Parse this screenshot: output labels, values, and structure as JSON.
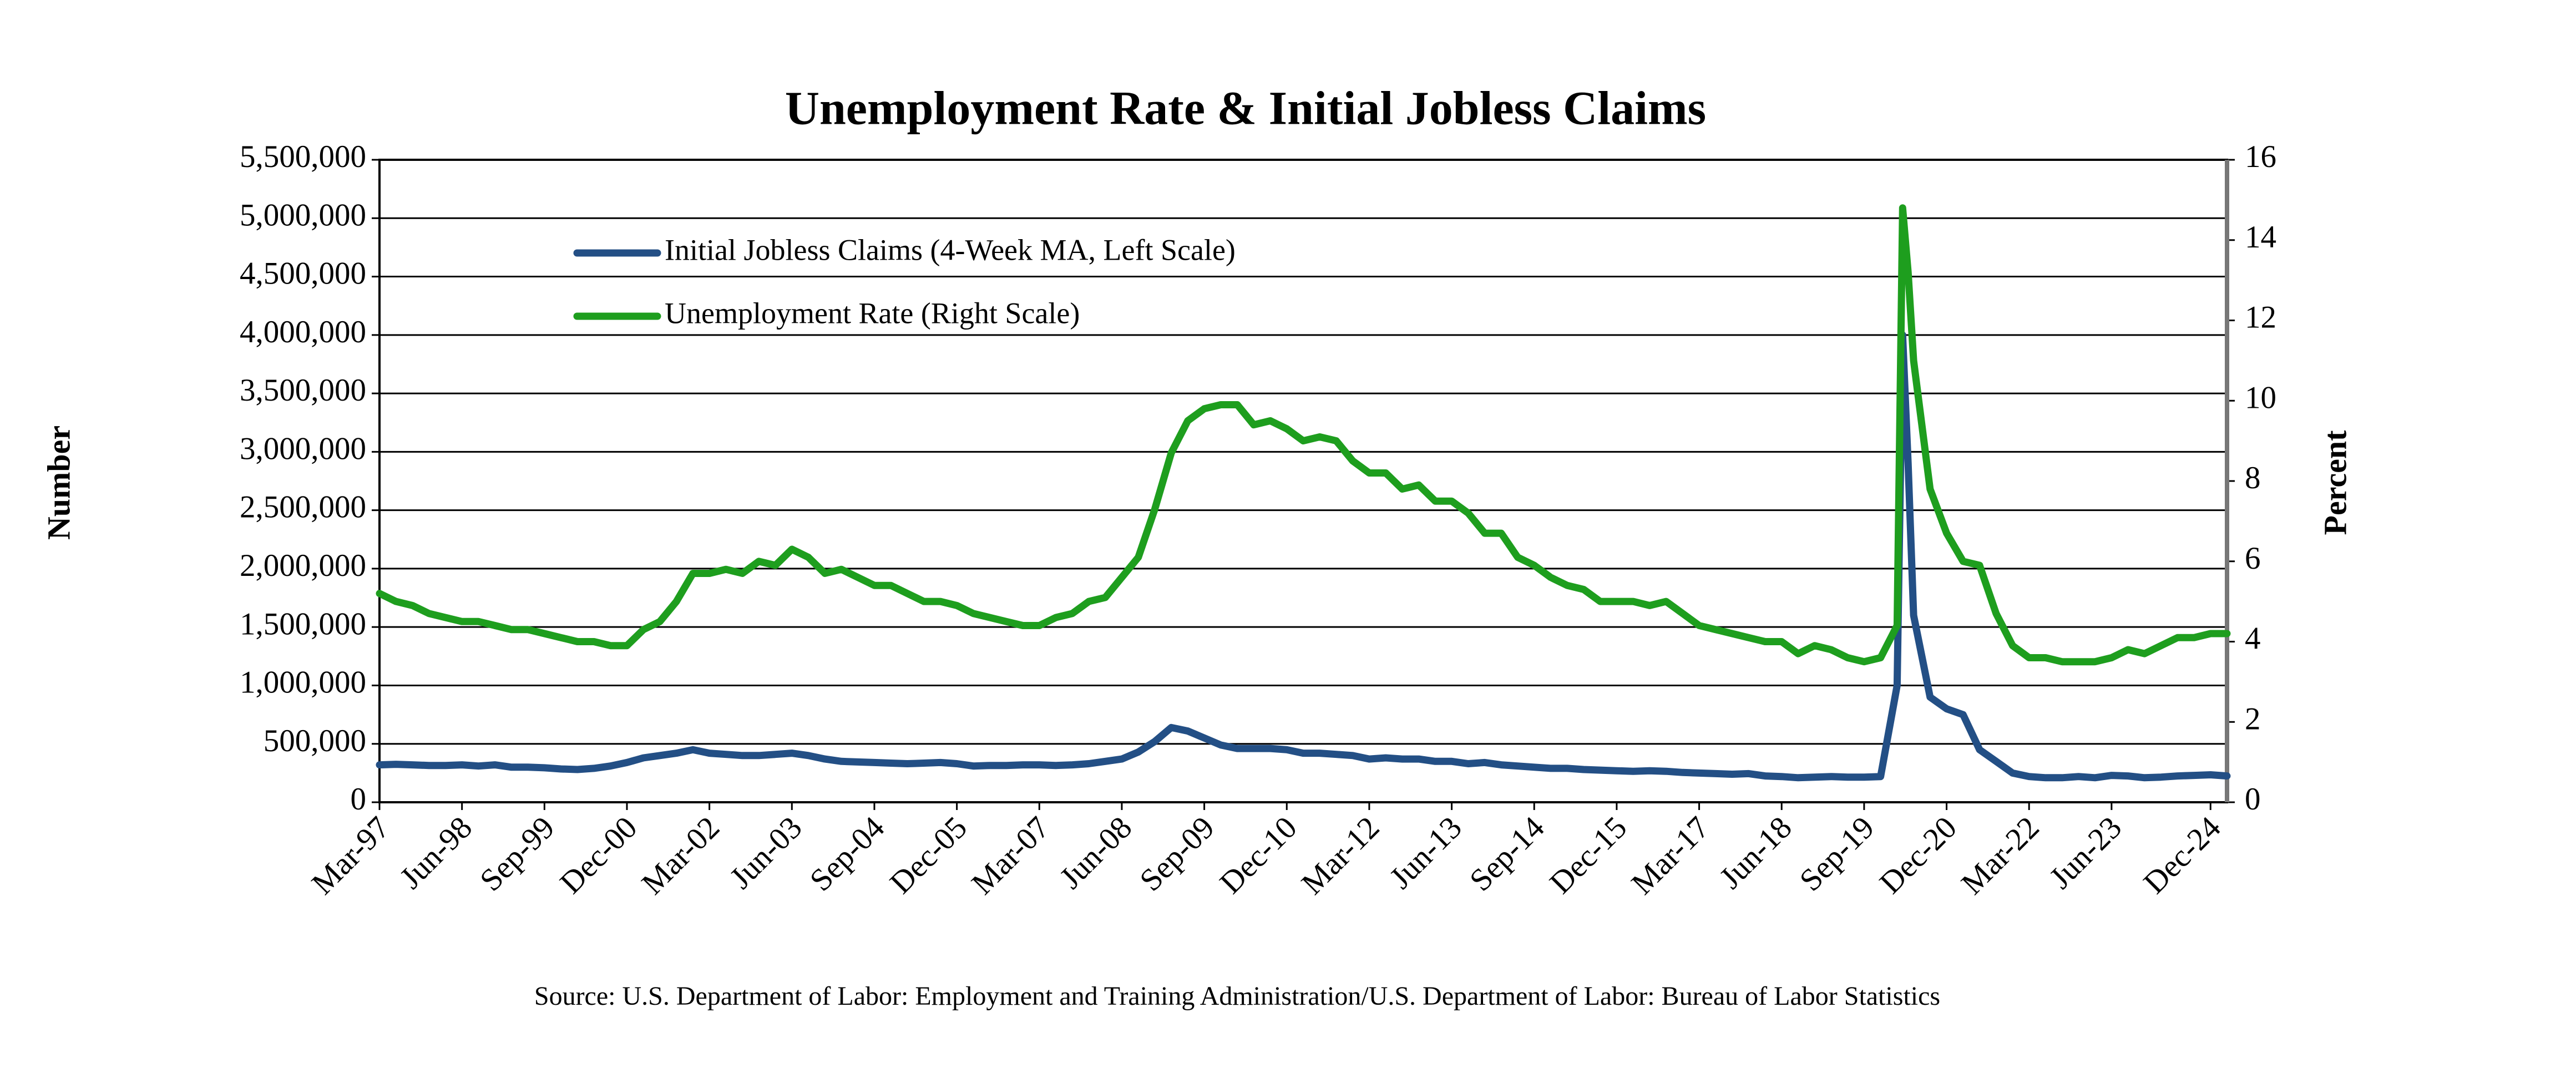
{
  "chart_data": {
    "type": "line",
    "title": "Unemployment Rate & Initial Jobless Claims",
    "ylabel": "Number",
    "y2label": "Percent",
    "source": "Source: U.S. Department of Labor: Employment and Training Administration/U.S. Department of Labor: Bureau of Labor Statistics",
    "x": [
      "Mar-97",
      "Jun-97",
      "Sep-97",
      "Dec-97",
      "Mar-98",
      "Jun-98",
      "Sep-98",
      "Dec-98",
      "Mar-99",
      "Jun-99",
      "Sep-99",
      "Dec-99",
      "Mar-00",
      "Jun-00",
      "Sep-00",
      "Dec-00",
      "Mar-01",
      "Jun-01",
      "Sep-01",
      "Dec-01",
      "Mar-02",
      "Jun-02",
      "Sep-02",
      "Dec-02",
      "Mar-03",
      "Jun-03",
      "Sep-03",
      "Dec-03",
      "Mar-04",
      "Jun-04",
      "Sep-04",
      "Dec-04",
      "Mar-05",
      "Jun-05",
      "Sep-05",
      "Dec-05",
      "Mar-06",
      "Jun-06",
      "Sep-06",
      "Dec-06",
      "Mar-07",
      "Jun-07",
      "Sep-07",
      "Dec-07",
      "Mar-08",
      "Jun-08",
      "Sep-08",
      "Dec-08",
      "Mar-09",
      "Jun-09",
      "Sep-09",
      "Dec-09",
      "Mar-10",
      "Jun-10",
      "Sep-10",
      "Dec-10",
      "Mar-11",
      "Jun-11",
      "Sep-11",
      "Dec-11",
      "Mar-12",
      "Jun-12",
      "Sep-12",
      "Dec-12",
      "Mar-13",
      "Jun-13",
      "Sep-13",
      "Dec-13",
      "Mar-14",
      "Jun-14",
      "Sep-14",
      "Dec-14",
      "Mar-15",
      "Jun-15",
      "Sep-15",
      "Dec-15",
      "Mar-16",
      "Jun-16",
      "Sep-16",
      "Dec-16",
      "Mar-17",
      "Jun-17",
      "Sep-17",
      "Dec-17",
      "Mar-18",
      "Jun-18",
      "Sep-18",
      "Dec-18",
      "Mar-19",
      "Jun-19",
      "Sep-19",
      "Dec-19",
      "Mar-20",
      "Apr-20",
      "May-20",
      "Jun-20",
      "Sep-20",
      "Dec-20",
      "Mar-21",
      "Jun-21",
      "Sep-21",
      "Dec-21",
      "Mar-22",
      "Jun-22",
      "Sep-22",
      "Dec-22",
      "Mar-23",
      "Jun-23",
      "Sep-23",
      "Dec-23",
      "Mar-24",
      "Jun-24",
      "Sep-24",
      "Dec-24",
      "Mar-25"
    ],
    "xlim": [
      "Mar-97",
      "Mar-25"
    ],
    "xticks": [
      "Mar-97",
      "Jun-98",
      "Sep-99",
      "Dec-00",
      "Mar-02",
      "Jun-03",
      "Sep-04",
      "Dec-05",
      "Mar-07",
      "Jun-08",
      "Sep-09",
      "Dec-10",
      "Mar-12",
      "Jun-13",
      "Sep-14",
      "Dec-15",
      "Mar-17",
      "Jun-18",
      "Sep-19",
      "Dec-20",
      "Mar-22",
      "Jun-23",
      "Dec-24"
    ],
    "series": [
      {
        "name": "Initial Jobless Claims (4-Week MA, Left Scale)",
        "color": "#234f85",
        "values": [
          320000,
          325000,
          320000,
          315000,
          315000,
          320000,
          310000,
          320000,
          300000,
          300000,
          295000,
          285000,
          280000,
          290000,
          310000,
          340000,
          380000,
          400000,
          420000,
          450000,
          420000,
          410000,
          400000,
          400000,
          410000,
          420000,
          400000,
          370000,
          350000,
          345000,
          340000,
          335000,
          330000,
          335000,
          340000,
          330000,
          310000,
          315000,
          315000,
          320000,
          320000,
          315000,
          320000,
          330000,
          350000,
          370000,
          430000,
          520000,
          640000,
          610000,
          550000,
          490000,
          460000,
          460000,
          460000,
          450000,
          420000,
          420000,
          410000,
          400000,
          370000,
          380000,
          370000,
          370000,
          350000,
          350000,
          330000,
          340000,
          320000,
          310000,
          300000,
          290000,
          290000,
          280000,
          275000,
          270000,
          265000,
          270000,
          265000,
          255000,
          250000,
          245000,
          240000,
          245000,
          225000,
          220000,
          210000,
          215000,
          220000,
          215000,
          215000,
          220000,
          1000000,
          4000000,
          2900000,
          1600000,
          900000,
          800000,
          750000,
          450000,
          350000,
          250000,
          220000,
          210000,
          210000,
          220000,
          210000,
          230000,
          225000,
          210000,
          215000,
          225000,
          230000,
          235000,
          225000
        ]
      },
      {
        "name": "Unemployment Rate (Right Scale)",
        "color": "#1e9e1e",
        "axis": "y2",
        "values": [
          5.2,
          5.0,
          4.9,
          4.7,
          4.6,
          4.5,
          4.5,
          4.4,
          4.3,
          4.3,
          4.2,
          4.1,
          4.0,
          4.0,
          3.9,
          3.9,
          4.3,
          4.5,
          5.0,
          5.7,
          5.7,
          5.8,
          5.7,
          6.0,
          5.9,
          6.3,
          6.1,
          5.7,
          5.8,
          5.6,
          5.4,
          5.4,
          5.2,
          5.0,
          5.0,
          4.9,
          4.7,
          4.6,
          4.5,
          4.4,
          4.4,
          4.6,
          4.7,
          5.0,
          5.1,
          5.6,
          6.1,
          7.3,
          8.7,
          9.5,
          9.8,
          9.9,
          9.9,
          9.4,
          9.5,
          9.3,
          9.0,
          9.1,
          9.0,
          8.5,
          8.2,
          8.2,
          7.8,
          7.9,
          7.5,
          7.5,
          7.2,
          6.7,
          6.7,
          6.1,
          5.9,
          5.6,
          5.4,
          5.3,
          5.0,
          5.0,
          5.0,
          4.9,
          5.0,
          4.7,
          4.4,
          4.3,
          4.2,
          4.1,
          4.0,
          4.0,
          3.7,
          3.9,
          3.8,
          3.6,
          3.5,
          3.6,
          4.4,
          14.8,
          13.2,
          11.0,
          7.8,
          6.7,
          6.0,
          5.9,
          4.7,
          3.9,
          3.6,
          3.6,
          3.5,
          3.5,
          3.5,
          3.6,
          3.8,
          3.7,
          3.9,
          4.1,
          4.1,
          4.2,
          4.2
        ]
      }
    ],
    "ylim": [
      0,
      5500000
    ],
    "yticks": [
      0,
      {
        "value": 500000,
        "label": "500,000"
      },
      {
        "value": 1000000,
        "label": "1,000,000"
      },
      {
        "value": 1500000,
        "label": "1,500,000"
      },
      {
        "value": 2000000,
        "label": "2,000,000"
      },
      {
        "value": 2500000,
        "label": "2,500,000"
      },
      {
        "value": 3000000,
        "label": "3,000,000"
      },
      {
        "value": 3500000,
        "label": "3,500,000"
      },
      {
        "value": 4000000,
        "label": "4,000,000"
      },
      {
        "value": 4500000,
        "label": "4,500,000"
      },
      {
        "value": 5000000,
        "label": "5,000,000"
      },
      {
        "value": 5500000,
        "label": "5,500,000"
      }
    ],
    "y2lim": [
      0,
      16
    ],
    "y2ticks": [
      0,
      2,
      4,
      6,
      8,
      10,
      12,
      14,
      16
    ],
    "grid": true
  }
}
